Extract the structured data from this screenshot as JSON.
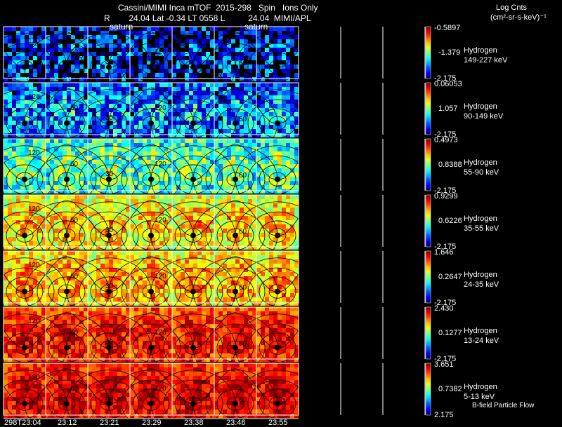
{
  "header": {
    "line1": "Cassini/MIMI Inca mTOF  2015-298   Spin   Ions Only",
    "line2": "R        24.04 Lat -0.34 LT 0558 L          24.04  MIMI/APL",
    "units_line1": "Log Cnts",
    "units_line2": "(cm²-sr-s-keV)⁻¹",
    "saturn_labels": [
      "saturn",
      "saturn"
    ],
    "footer_note": "B-field Particle Flow"
  },
  "time_ticks": [
    "298T23:04",
    "23:12",
    "23:21",
    "23:29",
    "23:38",
    "23:46",
    "23:55"
  ],
  "contour_labels": [
    "0",
    "30",
    "60",
    "90",
    "120",
    "150",
    "180"
  ],
  "panels": [
    {
      "species": "Hydrogen",
      "energy": "149-227 keV",
      "cmax": "-0.5897",
      "cmid": "-1.379",
      "cmin": "-2.175",
      "level": 0.1
    },
    {
      "species": "Hydrogen",
      "energy": "90-149 keV",
      "cmax": "0.06053",
      "cmid": "1.057",
      "cmin": "-2.175",
      "level": 0.22
    },
    {
      "species": "Hydrogen",
      "energy": "55-90 keV",
      "cmax": "0.4973",
      "cmid": "0.8388",
      "cmin": "-2.175",
      "level": 0.42
    },
    {
      "species": "Hydrogen",
      "energy": "35-55 keV",
      "cmax": "0.9299",
      "cmid": "0.6226",
      "cmin": "-2.175",
      "level": 0.62
    },
    {
      "species": "Hydrogen",
      "energy": "24-35 keV",
      "cmax": "1.646",
      "cmid": "0.2647",
      "cmin": "-2.175",
      "level": 0.66
    },
    {
      "species": "Hydrogen",
      "energy": "13-24 keV",
      "cmax": "2.430",
      "cmid": "0.1277",
      "cmin": "-2.175",
      "level": 0.82
    },
    {
      "species": "Hydrogen",
      "energy": "5-13 keV",
      "cmax": "3.651",
      "cmid": "0.7382",
      "cmin": "2.175",
      "level": 0.86
    }
  ],
  "colors": {
    "background": "#000000",
    "grid_line": "#ffffff",
    "contour": "#000000"
  }
}
